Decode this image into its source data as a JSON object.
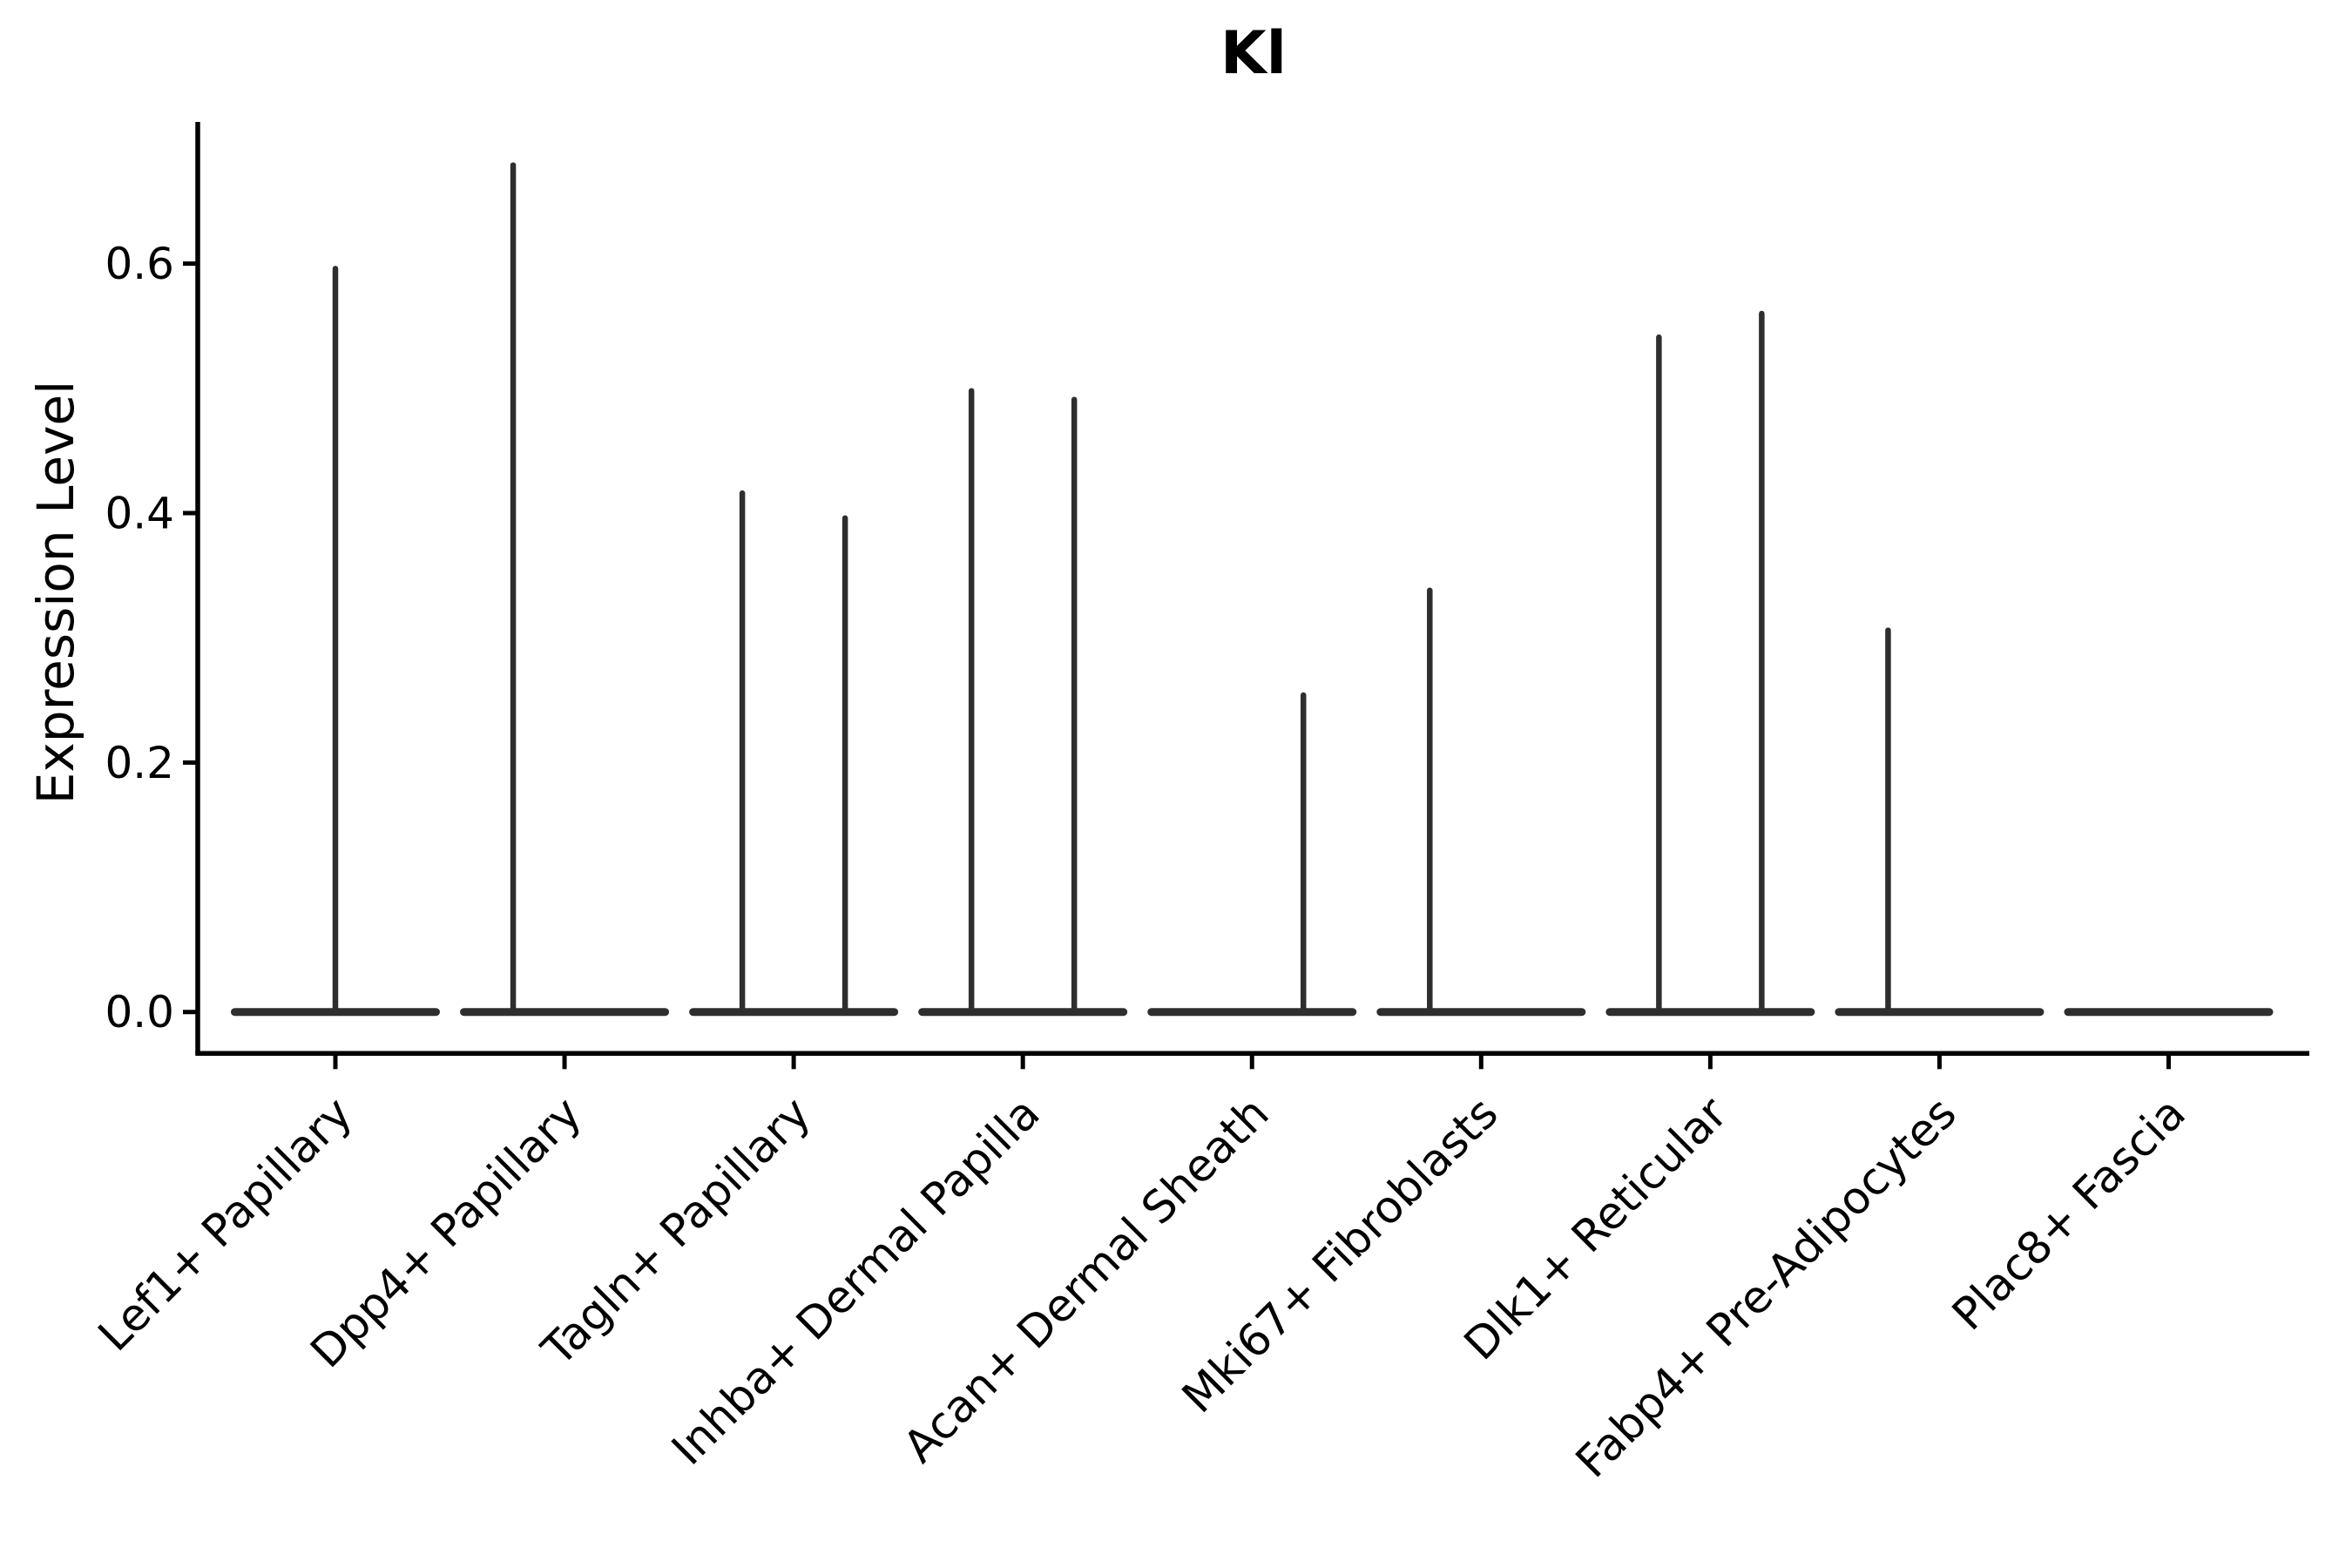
{
  "title": "Kl",
  "colors": {
    "background": "#ffffff",
    "violin": "#2e2e2e",
    "axis": "#000000",
    "text": "#000000"
  },
  "y_axis": {
    "label": "Expression Level",
    "tick_labels": [
      "0.0",
      "0.2",
      "0.4",
      "0.6"
    ]
  },
  "chart_data": {
    "type": "violin",
    "title": "Kl",
    "xlabel": "",
    "ylabel": "Expression Level",
    "ylim": [
      -0.033,
      0.714
    ],
    "yticks": [
      0.0,
      0.2,
      0.4,
      0.6
    ],
    "grid": false,
    "legend_position": "none",
    "categories": [
      "Lef1+ Papillary",
      "Dpp4+ Papillary",
      "Tagln+ Papillary",
      "Inhba+ Dermal Papilla",
      "Acan+ Dermal Sheath",
      "Mki67+ Fibroblasts",
      "Dlk1+ Reticular",
      "Fabp4+ Pre-Adipocytes",
      "Plac8+ Fascia"
    ],
    "violins": [
      {
        "category": "Lef1+ Papillary",
        "zero_mass_base": true,
        "spikes": [
          {
            "offset": 0,
            "max": 0.596
          }
        ]
      },
      {
        "category": "Dpp4+ Papillary",
        "zero_mass_base": true,
        "spikes": [
          {
            "offset": -59,
            "max": 0.679
          }
        ]
      },
      {
        "category": "Tagln+ Papillary",
        "zero_mass_base": true,
        "spikes": [
          {
            "offset": -59,
            "max": 0.416
          },
          {
            "offset": 59,
            "max": 0.396
          }
        ]
      },
      {
        "category": "Inhba+ Dermal Papilla",
        "zero_mass_base": true,
        "spikes": [
          {
            "offset": -59,
            "max": 0.498
          },
          {
            "offset": 59,
            "max": 0.491
          }
        ]
      },
      {
        "category": "Acan+ Dermal Sheath",
        "zero_mass_base": true,
        "spikes": [
          {
            "offset": 59,
            "max": 0.254
          }
        ]
      },
      {
        "category": "Mki67+ Fibroblasts",
        "zero_mass_base": true,
        "spikes": [
          {
            "offset": -59,
            "max": 0.338
          }
        ]
      },
      {
        "category": "Dlk1+ Reticular",
        "zero_mass_base": true,
        "spikes": [
          {
            "offset": -59,
            "max": 0.541
          },
          {
            "offset": 59,
            "max": 0.56
          }
        ]
      },
      {
        "category": "Fabp4+ Pre-Adipocytes",
        "zero_mass_base": true,
        "spikes": [
          {
            "offset": -59,
            "max": 0.306
          }
        ]
      },
      {
        "category": "Plac8+ Fascia",
        "zero_mass_base": true,
        "spikes": []
      }
    ]
  }
}
